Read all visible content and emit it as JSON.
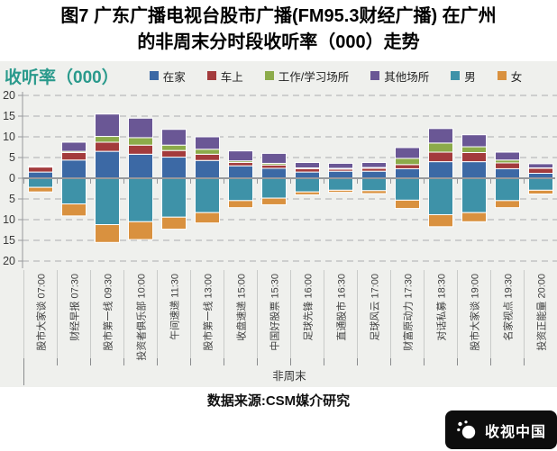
{
  "title": {
    "line1": "图7 广东广播电视台股市广播(FM95.3财经广播) 在广州",
    "line2": "的非周末分时段收听率（000）走势"
  },
  "axis_title": "收听率（000）",
  "group_label": "非周末",
  "source": "数据来源:CSM媒介研究",
  "logo": {
    "text": "收视中国"
  },
  "colors": {
    "background": "#EFF0ED",
    "grid": "#ABADAF",
    "zero_line": "#97999C",
    "axis_text": "#3A3A3A",
    "separator": "#C9CBC9",
    "axis_title_teal": "#2A9A8C"
  },
  "chart_data": {
    "type": "bar",
    "subtype": "diverging-stacked",
    "title": "图7 广东广播电视台股市广播(FM95.3财经广播) 在广州的非周末分时段收听率（000）走势",
    "ylabel": "收听率（000）",
    "xlabel": "非周末",
    "ylim": [
      -20,
      20
    ],
    "ytick_interval": 5,
    "ytick_labels_absolute": true,
    "grid": true,
    "legend_position": "top",
    "categories": [
      "股市大家谈 07:00",
      "财经早报 07:30",
      "股市第一线 09:30",
      "投资者俱乐部 10:00",
      "午间速递 11:30",
      "股市第一线 13:00",
      "收盘速递 15:00",
      "中国好股票 15:30",
      "足球先锋 16:00",
      "直通股市 16:30",
      "足球风云 17:00",
      "财富原动力 17:30",
      "对话私募 18:30",
      "股市大家谈 19:00",
      "名家视点 19:30",
      "投资正能量 20:00"
    ],
    "series_above": [
      {
        "name": "在家",
        "color": "#3C69A5",
        "values": [
          1.5,
          4.4,
          6.5,
          5.8,
          5.1,
          4.3,
          3.0,
          2.4,
          1.5,
          1.7,
          1.7,
          2.3,
          4.0,
          4.0,
          2.3,
          1.2
        ]
      },
      {
        "name": "车上",
        "color": "#A33B3C",
        "values": [
          1.2,
          1.8,
          2.2,
          2.2,
          1.6,
          1.5,
          0.8,
          0.8,
          0.8,
          0.5,
          0.7,
          1.0,
          2.3,
          2.2,
          1.4,
          1.2
        ]
      },
      {
        "name": "工作/学习场所",
        "color": "#8CAB4A",
        "values": [
          0.1,
          0.3,
          1.4,
          1.8,
          1.3,
          1.2,
          0.4,
          0.4,
          0.2,
          0.2,
          0.2,
          1.5,
          2.2,
          1.4,
          0.7,
          0.1
        ]
      },
      {
        "name": "其他场所",
        "color": "#6A5795",
        "values": [
          0.2,
          2.2,
          5.4,
          4.7,
          3.8,
          3.0,
          2.4,
          2.4,
          1.3,
          1.2,
          1.2,
          2.6,
          3.5,
          2.9,
          1.9,
          1.0
        ]
      }
    ],
    "series_below": [
      {
        "name": "男",
        "color": "#3E92A8",
        "values": [
          2.2,
          6.2,
          11.2,
          10.5,
          9.4,
          8.3,
          5.4,
          4.8,
          3.3,
          2.9,
          3.0,
          5.3,
          8.8,
          8.3,
          5.4,
          2.9
        ]
      },
      {
        "name": "女",
        "color": "#D9913F",
        "values": [
          1.1,
          2.9,
          4.3,
          4.3,
          2.9,
          2.5,
          1.7,
          1.6,
          0.7,
          0.5,
          0.7,
          2.0,
          2.9,
          2.2,
          1.7,
          0.9
        ]
      }
    ]
  }
}
